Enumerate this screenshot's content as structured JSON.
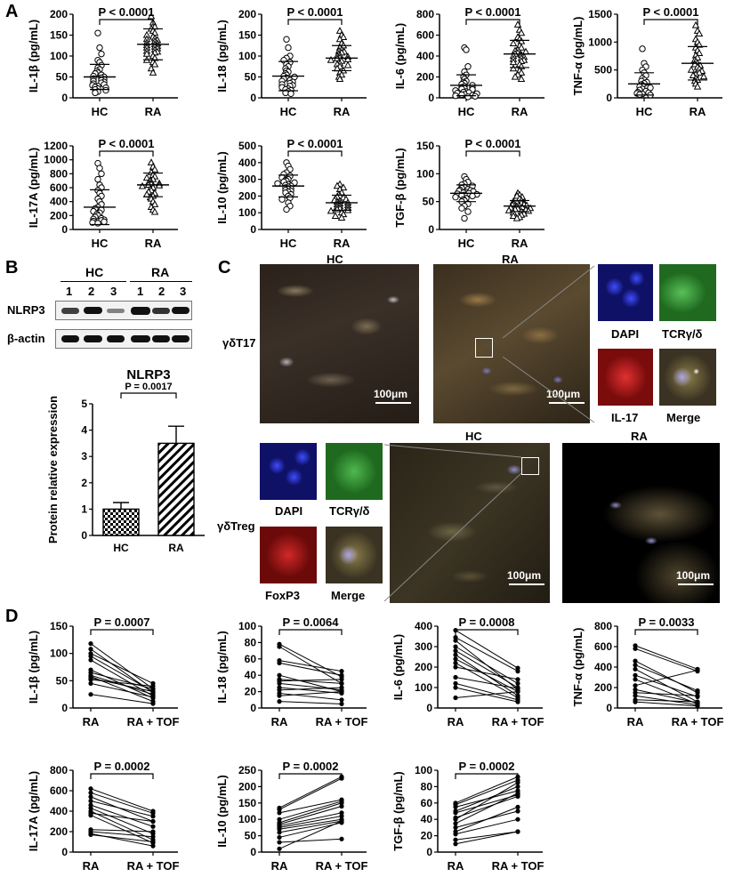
{
  "panel_letters": [
    "A",
    "B",
    "C",
    "D"
  ],
  "p_values_A": [
    "P < 0.0001",
    "P < 0.0001",
    "P < 0.0001",
    "P < 0.0001",
    "P < 0.0001",
    "P < 0.0001",
    "P < 0.0001"
  ],
  "chart_data": [
    {
      "panel": "A",
      "type": "scatter",
      "ylabel": "IL-1β  (pg/mL)",
      "categories": [
        "HC",
        "RA"
      ],
      "ylim": [
        0,
        200
      ],
      "yticks": [
        0,
        50,
        100,
        150,
        200
      ],
      "annotation": "P < 0.0001",
      "series": [
        {
          "name": "HC",
          "mean": 50,
          "sd": 30,
          "values": [
            155,
            120,
            105,
            90,
            85,
            78,
            72,
            68,
            64,
            60,
            58,
            55,
            52,
            50,
            48,
            46,
            44,
            42,
            40,
            38,
            36,
            34,
            32,
            30,
            28,
            26,
            24,
            22,
            20,
            18,
            15,
            12
          ]
        },
        {
          "name": "RA",
          "mean": 128,
          "sd": 37,
          "values": [
            195,
            180,
            170,
            165,
            160,
            155,
            150,
            146,
            142,
            140,
            138,
            135,
            132,
            130,
            128,
            126,
            124,
            122,
            120,
            118,
            115,
            112,
            110,
            108,
            105,
            100,
            95,
            90,
            85,
            80,
            70,
            60
          ]
        }
      ]
    },
    {
      "panel": "A",
      "type": "scatter",
      "ylabel": "IL-18  (pg/mL)",
      "categories": [
        "HC",
        "RA"
      ],
      "ylim": [
        0,
        200
      ],
      "yticks": [
        0,
        50,
        100,
        150,
        200
      ],
      "annotation": "P < 0.0001",
      "series": [
        {
          "name": "HC",
          "mean": 52,
          "sd": 35,
          "values": [
            140,
            120,
            100,
            95,
            90,
            85,
            80,
            75,
            70,
            65,
            62,
            58,
            55,
            52,
            50,
            48,
            45,
            42,
            40,
            38,
            35,
            32,
            30,
            28,
            25,
            22,
            20,
            18,
            15,
            12,
            10
          ]
        },
        {
          "name": "RA",
          "mean": 95,
          "sd": 30,
          "values": [
            160,
            150,
            145,
            140,
            130,
            125,
            120,
            115,
            112,
            110,
            108,
            105,
            102,
            100,
            98,
            96,
            94,
            92,
            90,
            88,
            85,
            82,
            80,
            78,
            75,
            70,
            65,
            60,
            55,
            50,
            45
          ]
        }
      ]
    },
    {
      "panel": "A",
      "type": "scatter",
      "ylabel": "IL-6  (pg/mL)",
      "categories": [
        "HC",
        "RA"
      ],
      "ylim": [
        0,
        800
      ],
      "yticks": [
        0,
        200,
        400,
        600,
        800
      ],
      "annotation": "P < 0.0001",
      "series": [
        {
          "name": "HC",
          "mean": 120,
          "sd": 100,
          "values": [
            480,
            460,
            300,
            250,
            220,
            200,
            180,
            160,
            150,
            140,
            130,
            120,
            110,
            100,
            95,
            90,
            85,
            80,
            70,
            60,
            55,
            50,
            45,
            40,
            35,
            30,
            25,
            20,
            15,
            10
          ]
        },
        {
          "name": "RA",
          "mean": 420,
          "sd": 130,
          "values": [
            700,
            650,
            620,
            580,
            560,
            540,
            520,
            500,
            480,
            460,
            450,
            440,
            430,
            420,
            410,
            400,
            390,
            380,
            370,
            360,
            350,
            340,
            320,
            300,
            280,
            260,
            240,
            220,
            200,
            180
          ]
        }
      ]
    },
    {
      "panel": "A",
      "type": "scatter",
      "ylabel": "TNF-α  (pg/mL)",
      "categories": [
        "HC",
        "RA"
      ],
      "ylim": [
        0,
        1500
      ],
      "yticks": [
        0,
        500,
        1000,
        1500
      ],
      "annotation": "P < 0.0001",
      "series": [
        {
          "name": "HC",
          "mean": 250,
          "sd": 200,
          "values": [
            880,
            620,
            560,
            500,
            450,
            400,
            350,
            320,
            300,
            280,
            260,
            240,
            220,
            200,
            180,
            160,
            140,
            120,
            100,
            90,
            80,
            70,
            60,
            50
          ]
        },
        {
          "name": "RA",
          "mean": 620,
          "sd": 300,
          "values": [
            1300,
            1200,
            1150,
            1050,
            1000,
            950,
            900,
            850,
            800,
            760,
            720,
            680,
            650,
            620,
            600,
            580,
            550,
            520,
            500,
            480,
            450,
            420,
            400,
            380,
            350,
            320,
            300,
            250,
            200
          ]
        }
      ]
    },
    {
      "panel": "A",
      "type": "scatter",
      "ylabel": "IL-17A  (pg/mL)",
      "categories": [
        "HC",
        "RA"
      ],
      "ylim": [
        0,
        1200
      ],
      "yticks": [
        0,
        200,
        400,
        600,
        800,
        1000,
        1200
      ],
      "annotation": "P < 0.0001",
      "series": [
        {
          "name": "HC",
          "mean": 320,
          "sd": 250,
          "values": [
            950,
            880,
            800,
            720,
            640,
            600,
            560,
            520,
            480,
            440,
            400,
            360,
            320,
            300,
            280,
            260,
            240,
            220,
            200,
            180,
            160,
            150,
            140,
            130,
            120,
            110,
            100,
            90
          ]
        },
        {
          "name": "RA",
          "mean": 640,
          "sd": 170,
          "values": [
            960,
            900,
            860,
            820,
            780,
            760,
            740,
            720,
            700,
            680,
            670,
            660,
            650,
            640,
            630,
            620,
            600,
            580,
            560,
            540,
            520,
            500,
            480,
            460,
            440,
            400,
            360,
            320,
            280,
            250
          ]
        }
      ]
    },
    {
      "panel": "A",
      "type": "scatter",
      "ylabel": "IL-10  (pg/mL)",
      "categories": [
        "HC",
        "RA"
      ],
      "ylim": [
        0,
        500
      ],
      "yticks": [
        0,
        100,
        200,
        300,
        400,
        500
      ],
      "annotation": "P < 0.0001",
      "series": [
        {
          "name": "HC",
          "mean": 260,
          "sd": 65,
          "values": [
            400,
            380,
            360,
            340,
            330,
            320,
            310,
            300,
            295,
            290,
            285,
            280,
            275,
            270,
            265,
            260,
            255,
            250,
            245,
            240,
            235,
            230,
            225,
            220,
            210,
            200,
            190,
            180,
            160,
            140,
            120
          ]
        },
        {
          "name": "RA",
          "mean": 160,
          "sd": 45,
          "values": [
            270,
            260,
            250,
            240,
            220,
            210,
            200,
            195,
            190,
            185,
            180,
            175,
            170,
            165,
            160,
            155,
            150,
            145,
            140,
            135,
            130,
            125,
            120,
            115,
            110,
            100,
            90,
            80,
            70
          ]
        }
      ]
    },
    {
      "panel": "A",
      "type": "scatter",
      "ylabel": "TGF-β  (pg/mL)",
      "categories": [
        "HC",
        "RA"
      ],
      "ylim": [
        0,
        150
      ],
      "yticks": [
        0,
        50,
        100,
        150
      ],
      "annotation": "P < 0.0001",
      "series": [
        {
          "name": "HC",
          "mean": 65,
          "sd": 15,
          "values": [
            95,
            90,
            85,
            82,
            80,
            78,
            76,
            74,
            72,
            71,
            70,
            69,
            68,
            67,
            66,
            65,
            64,
            63,
            62,
            61,
            60,
            58,
            56,
            54,
            52,
            50,
            46,
            42,
            38,
            32,
            20
          ]
        },
        {
          "name": "RA",
          "mean": 42,
          "sd": 10,
          "values": [
            65,
            62,
            60,
            58,
            55,
            52,
            50,
            48,
            47,
            46,
            45,
            44,
            43,
            42,
            41,
            40,
            39,
            38,
            37,
            36,
            35,
            34,
            33,
            32,
            30,
            28,
            26,
            24,
            22,
            20
          ]
        }
      ]
    },
    {
      "panel": "B",
      "type": "bar",
      "title": "NLRP3",
      "ylabel": "Protein relative expression",
      "categories": [
        "HC",
        "RA"
      ],
      "values": [
        1.0,
        3.5
      ],
      "errors": [
        0.25,
        0.65
      ],
      "ylim": [
        0,
        5
      ],
      "yticks": [
        0,
        1,
        2,
        3,
        4,
        5
      ],
      "annotation": "P = 0.0017"
    },
    {
      "panel": "D",
      "type": "line",
      "ylabel": "IL-1β  (pg/mL)",
      "categories": [
        "RA",
        "RA + TOF"
      ],
      "ylim": [
        0,
        150
      ],
      "yticks": [
        0,
        50,
        100,
        150
      ],
      "annotation": "P = 0.0007",
      "pairs": [
        [
          118,
          35
        ],
        [
          108,
          28
        ],
        [
          100,
          45
        ],
        [
          95,
          30
        ],
        [
          88,
          22
        ],
        [
          70,
          18
        ],
        [
          65,
          35
        ],
        [
          60,
          25
        ],
        [
          58,
          12
        ],
        [
          55,
          30
        ],
        [
          52,
          40
        ],
        [
          45,
          20
        ],
        [
          25,
          8
        ]
      ]
    },
    {
      "panel": "D",
      "type": "line",
      "ylabel": "IL-18  (pg/mL)",
      "categories": [
        "RA",
        "RA + TOF"
      ],
      "ylim": [
        0,
        100
      ],
      "yticks": [
        0,
        20,
        40,
        60,
        80,
        100
      ],
      "annotation": "P = 0.0064",
      "pairs": [
        [
          78,
          38
        ],
        [
          75,
          30
        ],
        [
          58,
          45
        ],
        [
          55,
          40
        ],
        [
          40,
          20
        ],
        [
          35,
          30
        ],
        [
          33,
          35
        ],
        [
          30,
          22
        ],
        [
          25,
          18
        ],
        [
          22,
          25
        ],
        [
          18,
          10
        ],
        [
          15,
          20
        ],
        [
          8,
          5
        ]
      ]
    },
    {
      "panel": "D",
      "type": "line",
      "ylabel": "IL-6  (pg/mL)",
      "categories": [
        "RA",
        "RA + TOF"
      ],
      "ylim": [
        0,
        400
      ],
      "yticks": [
        0,
        100,
        200,
        300,
        400
      ],
      "annotation": "P = 0.0008",
      "pairs": [
        [
          380,
          195
        ],
        [
          345,
          180
        ],
        [
          330,
          90
        ],
        [
          300,
          120
        ],
        [
          280,
          100
        ],
        [
          260,
          60
        ],
        [
          240,
          80
        ],
        [
          220,
          50
        ],
        [
          200,
          140
        ],
        [
          150,
          95
        ],
        [
          120,
          40
        ],
        [
          100,
          30
        ],
        [
          50,
          80
        ]
      ]
    },
    {
      "panel": "D",
      "type": "line",
      "ylabel": "TNF-α  (pg/mL)",
      "categories": [
        "RA",
        "RA + TOF"
      ],
      "ylim": [
        0,
        800
      ],
      "yticks": [
        0,
        200,
        400,
        600,
        800
      ],
      "annotation": "P = 0.0033",
      "pairs": [
        [
          610,
          380
        ],
        [
          580,
          360
        ],
        [
          460,
          150
        ],
        [
          420,
          170
        ],
        [
          380,
          60
        ],
        [
          320,
          110
        ],
        [
          280,
          40
        ],
        [
          220,
          370
        ],
        [
          180,
          50
        ],
        [
          150,
          120
        ],
        [
          120,
          30
        ],
        [
          80,
          60
        ],
        [
          60,
          20
        ]
      ]
    },
    {
      "panel": "D",
      "type": "line",
      "ylabel": "IL-17A  (pg/mL)",
      "categories": [
        "RA",
        "RA + TOF"
      ],
      "ylim": [
        0,
        800
      ],
      "yticks": [
        0,
        200,
        400,
        600,
        800
      ],
      "annotation": "P = 0.0002",
      "pairs": [
        [
          620,
          400
        ],
        [
          580,
          380
        ],
        [
          540,
          300
        ],
        [
          500,
          350
        ],
        [
          460,
          250
        ],
        [
          430,
          180
        ],
        [
          400,
          120
        ],
        [
          380,
          300
        ],
        [
          360,
          90
        ],
        [
          220,
          200
        ],
        [
          200,
          150
        ],
        [
          180,
          60
        ],
        [
          170,
          100
        ]
      ]
    },
    {
      "panel": "D",
      "type": "line",
      "ylabel": "IL-10  (pg/mL)",
      "categories": [
        "RA",
        "RA + TOF"
      ],
      "ylim": [
        0,
        250
      ],
      "yticks": [
        0,
        50,
        100,
        150,
        200,
        250
      ],
      "annotation": "P = 0.0002",
      "pairs": [
        [
          135,
          230
        ],
        [
          130,
          225
        ],
        [
          120,
          160
        ],
        [
          100,
          155
        ],
        [
          90,
          150
        ],
        [
          85,
          140
        ],
        [
          80,
          120
        ],
        [
          75,
          110
        ],
        [
          70,
          100
        ],
        [
          60,
          95
        ],
        [
          45,
          90
        ],
        [
          30,
          40
        ],
        [
          10,
          95
        ]
      ]
    },
    {
      "panel": "D",
      "type": "line",
      "ylabel": "TGF-β  (pg/mL)",
      "categories": [
        "RA",
        "RA + TOF"
      ],
      "ylim": [
        0,
        100
      ],
      "yticks": [
        0,
        20,
        40,
        60,
        80,
        100
      ],
      "annotation": "P = 0.0002",
      "pairs": [
        [
          60,
          92
        ],
        [
          58,
          88
        ],
        [
          55,
          75
        ],
        [
          50,
          80
        ],
        [
          48,
          70
        ],
        [
          42,
          68
        ],
        [
          40,
          85
        ],
        [
          35,
          72
        ],
        [
          30,
          50
        ],
        [
          25,
          55
        ],
        [
          22,
          40
        ],
        [
          15,
          25
        ],
        [
          10,
          25
        ]
      ]
    }
  ],
  "western_blot": {
    "group_labels": [
      "HC",
      "RA"
    ],
    "lane_labels": [
      "1",
      "2",
      "3",
      "1",
      "2",
      "3"
    ],
    "row_labels": [
      "NLRP3",
      "β-actin"
    ]
  },
  "panel_c": {
    "labels": {
      "hc_top": "HC",
      "ra_top": "RA",
      "gdt17": "γδT17",
      "dapi": "DAPI",
      "tcr": "TCRγ/δ",
      "il17": "IL-17",
      "merge": "Merge",
      "hc_bottom": "HC",
      "ra_bottom": "RA",
      "gdtreg": "γδTreg",
      "dapi2": "DAPI",
      "tcr2": "TCRγ/δ",
      "foxp3": "FoxP3",
      "merge2": "Merge"
    },
    "scale_bar": "100μm",
    "colors": {
      "dapi": "#1a23c8",
      "tcr": "#1f8a1f",
      "il17": "#b01515",
      "foxp3": "#b01515",
      "tissue": "#6b5a3e"
    }
  }
}
